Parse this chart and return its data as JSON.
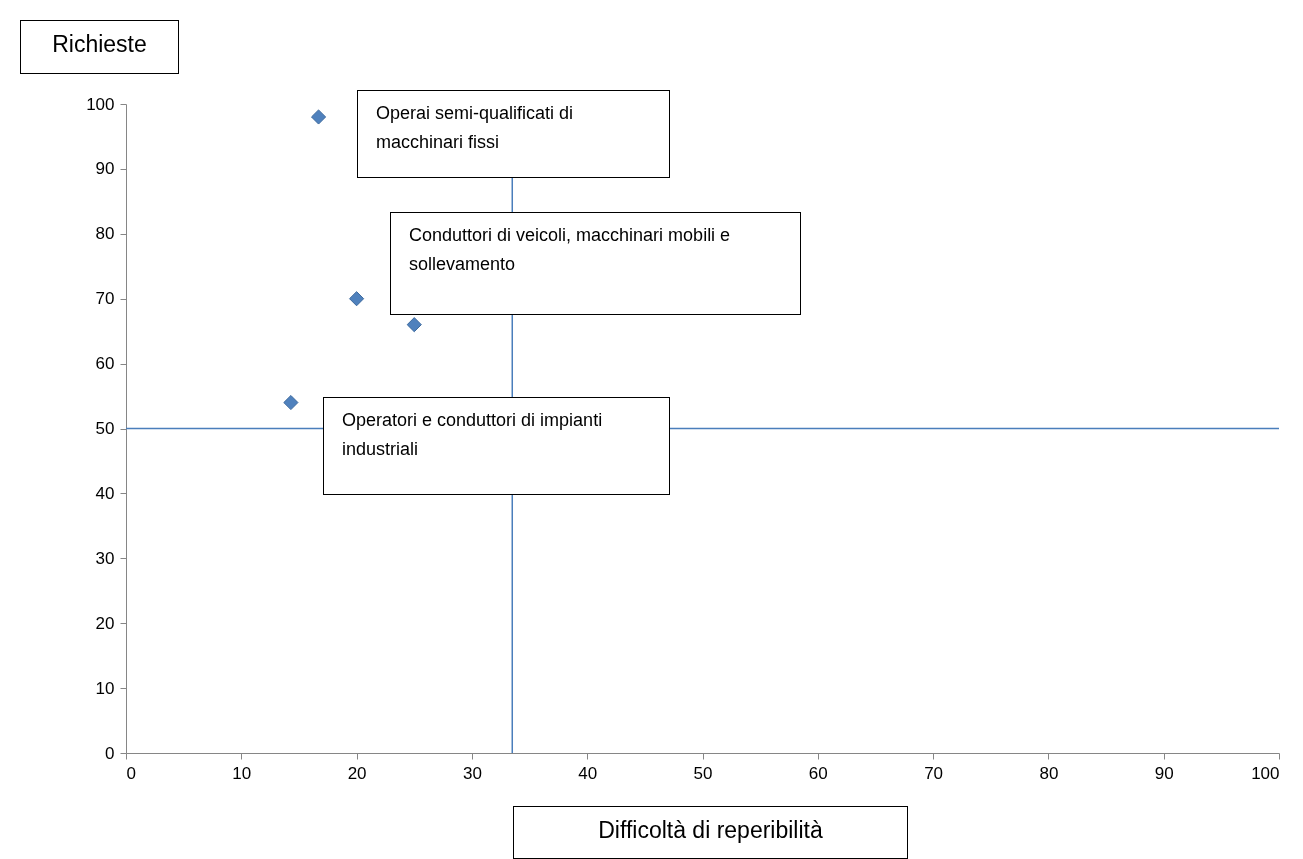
{
  "chart_data": {
    "type": "scatter",
    "xlabel": "Difficoltà di reperibilità",
    "ylabel": "Richieste",
    "x": [
      16.7,
      20,
      25,
      14.3
    ],
    "values": [
      98,
      70,
      66,
      54
    ],
    "color": "#4f81bd",
    "marker": "diamond",
    "xlim": [
      0,
      100
    ],
    "ylim": [
      0,
      100
    ],
    "xticks": [
      0,
      10,
      20,
      30,
      40,
      50,
      60,
      70,
      80,
      90,
      100
    ],
    "yticks": [
      0,
      10,
      20,
      30,
      40,
      50,
      60,
      70,
      80,
      90,
      100
    ],
    "grid": false,
    "ref_lines": [
      {
        "axis": "x",
        "value": 33.5,
        "color": "#4a7ebb"
      },
      {
        "axis": "y",
        "value": 50,
        "color": "#4a7ebb"
      }
    ],
    "annotations": [
      "Operai semi-qualificati di macchinari fissi",
      "Conduttori di veicoli, macchinari mobili e sollevamento",
      "Operatori e conduttori di impianti industriali"
    ]
  }
}
